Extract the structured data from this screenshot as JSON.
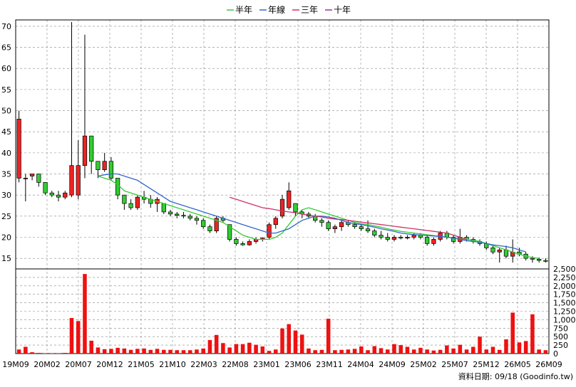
{
  "legend": [
    {
      "label": "半年",
      "color": "#33cc33"
    },
    {
      "label": "年線",
      "color": "#3366cc"
    },
    {
      "label": "三年",
      "color": "#cc3366"
    },
    {
      "label": "十年",
      "color": "#993399"
    }
  ],
  "footer": {
    "data_date": "資料日期: 09/18  (Goodinfo.tw)"
  },
  "colors": {
    "up": "#ee2222",
    "down": "#33cc33",
    "volume": "#ee1111",
    "grid": "#888888"
  },
  "chart_data": {
    "type": "candlestick",
    "price_axis": {
      "ticks": [
        15,
        20,
        25,
        30,
        35,
        40,
        45,
        50,
        55,
        60,
        65,
        70
      ],
      "range": [
        12.5,
        71.5
      ],
      "position": "left"
    },
    "volume_axis": {
      "ticks": [
        "0",
        "250",
        "500",
        "750",
        "1,000",
        "1,250",
        "1,500",
        "1,750",
        "2,000",
        "2,250",
        "2,500"
      ],
      "range": [
        0,
        2500
      ],
      "position": "right"
    },
    "x_labels": [
      "19M09",
      "20M02",
      "20M07",
      "20M12",
      "21M05",
      "21M10",
      "22M03",
      "22M08",
      "23M01",
      "23M06",
      "23M11",
      "24M04",
      "24M09",
      "25M02",
      "25M07",
      "25M12",
      "26M05",
      "26M09"
    ],
    "candles": [
      {
        "o": 34,
        "h": 50,
        "l": 33,
        "c": 48
      },
      {
        "o": 34,
        "h": 35,
        "l": 28.5,
        "c": 34
      },
      {
        "o": 34.5,
        "h": 35,
        "l": 33.5,
        "c": 35
      },
      {
        "o": 35,
        "h": 35,
        "l": 32,
        "c": 33
      },
      {
        "o": 33,
        "h": 33,
        "l": 30,
        "c": 30.5
      },
      {
        "o": 30.5,
        "h": 31,
        "l": 29.5,
        "c": 30
      },
      {
        "o": 30,
        "h": 31,
        "l": 28.5,
        "c": 29.5
      },
      {
        "o": 29.5,
        "h": 31,
        "l": 29,
        "c": 30.5
      },
      {
        "o": 30,
        "h": 71,
        "l": 29.5,
        "c": 37
      },
      {
        "o": 30,
        "h": 43,
        "l": 29,
        "c": 37
      },
      {
        "o": 37,
        "h": 68,
        "l": 34,
        "c": 44
      },
      {
        "o": 44,
        "h": 44,
        "l": 35,
        "c": 38
      },
      {
        "o": 38,
        "h": 38,
        "l": 34,
        "c": 36
      },
      {
        "o": 36,
        "h": 40,
        "l": 35.5,
        "c": 38
      },
      {
        "o": 38,
        "h": 39,
        "l": 33.5,
        "c": 34
      },
      {
        "o": 34,
        "h": 34,
        "l": 29,
        "c": 30
      },
      {
        "o": 30,
        "h": 30,
        "l": 26.5,
        "c": 28
      },
      {
        "o": 28,
        "h": 29,
        "l": 26.5,
        "c": 27
      },
      {
        "o": 27,
        "h": 30,
        "l": 26.5,
        "c": 29.5
      },
      {
        "o": 29.5,
        "h": 31,
        "l": 28,
        "c": 29
      },
      {
        "o": 29,
        "h": 30,
        "l": 27,
        "c": 28
      },
      {
        "o": 28,
        "h": 29.5,
        "l": 26,
        "c": 29
      },
      {
        "o": 28,
        "h": 28,
        "l": 25.5,
        "c": 26
      },
      {
        "o": 26,
        "h": 26.5,
        "l": 25,
        "c": 25.5
      },
      {
        "o": 25.5,
        "h": 26,
        "l": 24.5,
        "c": 25.2
      },
      {
        "o": 25.2,
        "h": 26,
        "l": 24.5,
        "c": 25
      },
      {
        "o": 25,
        "h": 25.5,
        "l": 24,
        "c": 24.5
      },
      {
        "o": 24.5,
        "h": 25,
        "l": 23,
        "c": 24
      },
      {
        "o": 24,
        "h": 24.5,
        "l": 22,
        "c": 22.5
      },
      {
        "o": 22.5,
        "h": 23,
        "l": 21,
        "c": 21.5
      },
      {
        "o": 21.5,
        "h": 25,
        "l": 21,
        "c": 24.5
      },
      {
        "o": 24.5,
        "h": 25,
        "l": 23.5,
        "c": 24
      },
      {
        "o": 23,
        "h": 23,
        "l": 19,
        "c": 19.5
      },
      {
        "o": 19.5,
        "h": 20,
        "l": 18,
        "c": 18.5
      },
      {
        "o": 18.5,
        "h": 19,
        "l": 18,
        "c": 18.2
      },
      {
        "o": 18.2,
        "h": 19.5,
        "l": 18,
        "c": 19
      },
      {
        "o": 19,
        "h": 20,
        "l": 18.5,
        "c": 19.5
      },
      {
        "o": 19.5,
        "h": 20,
        "l": 19,
        "c": 19.8
      },
      {
        "o": 20,
        "h": 23.5,
        "l": 19.5,
        "c": 23
      },
      {
        "o": 23,
        "h": 25,
        "l": 22,
        "c": 24.5
      },
      {
        "o": 25,
        "h": 30,
        "l": 24.5,
        "c": 29
      },
      {
        "o": 27,
        "h": 33,
        "l": 26.5,
        "c": 31
      },
      {
        "o": 28,
        "h": 28,
        "l": 25,
        "c": 26
      },
      {
        "o": 26,
        "h": 26.5,
        "l": 24.5,
        "c": 25.5
      },
      {
        "o": 25.5,
        "h": 26,
        "l": 24.5,
        "c": 25
      },
      {
        "o": 25,
        "h": 25.5,
        "l": 23.5,
        "c": 24
      },
      {
        "o": 24,
        "h": 24.5,
        "l": 22.5,
        "c": 23.5
      },
      {
        "o": 23.5,
        "h": 24,
        "l": 21.5,
        "c": 22
      },
      {
        "o": 22,
        "h": 23,
        "l": 21,
        "c": 22.5
      },
      {
        "o": 22.5,
        "h": 24,
        "l": 21.5,
        "c": 23.5
      },
      {
        "o": 23.5,
        "h": 24,
        "l": 22.5,
        "c": 23
      },
      {
        "o": 23,
        "h": 23.5,
        "l": 22,
        "c": 22.5
      },
      {
        "o": 22.5,
        "h": 23,
        "l": 21.5,
        "c": 22
      },
      {
        "o": 22,
        "h": 24,
        "l": 21,
        "c": 21.5
      },
      {
        "o": 21.5,
        "h": 22,
        "l": 20,
        "c": 20.5
      },
      {
        "o": 20.5,
        "h": 21.5,
        "l": 19.5,
        "c": 20
      },
      {
        "o": 20,
        "h": 21,
        "l": 19,
        "c": 19.5
      },
      {
        "o": 19.5,
        "h": 20.5,
        "l": 19,
        "c": 20
      },
      {
        "o": 20,
        "h": 20.5,
        "l": 19.5,
        "c": 19.8
      },
      {
        "o": 19.8,
        "h": 20.5,
        "l": 19.5,
        "c": 20
      },
      {
        "o": 20,
        "h": 21,
        "l": 19.5,
        "c": 20.5
      },
      {
        "o": 20.5,
        "h": 21,
        "l": 19.5,
        "c": 20
      },
      {
        "o": 20,
        "h": 20.5,
        "l": 18,
        "c": 18.5
      },
      {
        "o": 18.5,
        "h": 20,
        "l": 18,
        "c": 19.5
      },
      {
        "o": 19.5,
        "h": 21.5,
        "l": 19,
        "c": 21
      },
      {
        "o": 21,
        "h": 21.5,
        "l": 19.5,
        "c": 20
      },
      {
        "o": 20,
        "h": 20.5,
        "l": 18.5,
        "c": 19
      },
      {
        "o": 19,
        "h": 22,
        "l": 18.5,
        "c": 20
      },
      {
        "o": 20,
        "h": 20.5,
        "l": 19,
        "c": 19.5
      },
      {
        "o": 19.5,
        "h": 20,
        "l": 18.5,
        "c": 19
      },
      {
        "o": 19,
        "h": 19.5,
        "l": 18,
        "c": 18.5
      },
      {
        "o": 18.5,
        "h": 19,
        "l": 17,
        "c": 17.5
      },
      {
        "o": 17.5,
        "h": 18,
        "l": 16,
        "c": 16.5
      },
      {
        "o": 16.5,
        "h": 17.5,
        "l": 14,
        "c": 17
      },
      {
        "o": 17,
        "h": 18,
        "l": 15,
        "c": 15.5
      },
      {
        "o": 15.5,
        "h": 19.5,
        "l": 14,
        "c": 16.5
      },
      {
        "o": 16.5,
        "h": 17.5,
        "l": 15.5,
        "c": 16
      },
      {
        "o": 16,
        "h": 16.5,
        "l": 14.5,
        "c": 15
      },
      {
        "o": 15,
        "h": 15.5,
        "l": 14,
        "c": 14.8
      },
      {
        "o": 14.8,
        "h": 15.2,
        "l": 14,
        "c": 14.5
      },
      {
        "o": 14.5,
        "h": 15,
        "l": 14,
        "c": 14.3
      }
    ],
    "series": [
      {
        "name": "半年",
        "color": "#33cc33",
        "start": 12,
        "values": [
          34.5,
          34,
          33.5,
          32.5,
          31,
          30.5,
          30,
          29.5,
          29,
          28.5,
          28,
          27.5,
          27,
          26.5,
          26,
          25.5,
          25,
          24.5,
          24,
          23.5,
          22.5,
          21.5,
          20.5,
          20,
          19.5,
          19.5,
          19.5,
          20,
          21,
          23,
          25,
          26.5,
          27,
          26.5,
          26,
          25.5,
          25,
          24.5,
          24,
          23.5,
          23.2,
          23,
          22.7,
          22.4,
          22,
          21.7,
          21.4,
          21.2,
          21,
          20.8,
          20.6,
          20.4,
          20.2,
          20,
          19.8,
          19.6,
          19.5,
          19.3,
          19,
          18.5,
          18,
          17.5,
          17,
          16.5,
          16,
          15.5,
          15.2,
          15
        ]
      },
      {
        "name": "年線",
        "color": "#3366cc",
        "start": 12,
        "values": [
          34.5,
          34.8,
          35,
          35,
          34.5,
          34,
          33.5,
          32.5,
          31.5,
          30.5,
          29.5,
          28.5,
          28,
          27.5,
          27,
          26.5,
          26,
          25.5,
          25,
          24.5,
          24,
          23.5,
          23,
          22.5,
          22,
          21.5,
          21,
          21,
          21.5,
          22,
          23,
          24,
          24.5,
          25,
          25,
          24.8,
          24.5,
          24,
          23.5,
          23.2,
          23,
          22.7,
          22.4,
          22,
          21.7,
          21.4,
          21,
          20.8,
          20.6,
          20.5,
          20.4,
          20.3,
          20.2,
          20,
          19.8,
          19.5,
          19.2,
          19,
          18.8,
          18.5,
          18.2,
          18,
          17.8,
          17.5,
          17,
          16.5
        ]
      },
      {
        "name": "三年",
        "color": "#cc3366",
        "start": 32,
        "values": [
          29.5,
          29,
          28.5,
          28,
          27.5,
          27,
          26.8,
          26.5,
          26.2,
          26,
          25.8,
          25.5,
          25.2,
          25,
          24.8,
          24.5,
          24.3,
          24.2,
          24,
          23.8,
          23.6,
          23.4,
          23.2,
          23,
          22.8,
          22.6,
          22.4,
          22.2,
          22,
          21.8,
          21.6,
          21.4,
          21.2,
          21,
          20.5,
          20,
          19.5
        ]
      },
      {
        "name": "十年",
        "color": "#993399",
        "start": 0,
        "values": []
      }
    ],
    "volumes": [
      120,
      200,
      40,
      20,
      10,
      10,
      10,
      20,
      1050,
      960,
      2350,
      380,
      180,
      130,
      140,
      170,
      150,
      110,
      140,
      150,
      110,
      140,
      110,
      110,
      100,
      100,
      100,
      120,
      150,
      400,
      550,
      310,
      180,
      280,
      280,
      320,
      260,
      210,
      80,
      120,
      740,
      870,
      680,
      560,
      150,
      100,
      110,
      1030,
      100,
      110,
      120,
      140,
      210,
      100,
      220,
      160,
      120,
      280,
      250,
      200,
      120,
      170,
      120,
      90,
      110,
      240,
      150,
      260,
      120,
      200,
      500,
      120,
      200,
      110,
      420,
      1210,
      330,
      370,
      1160,
      120,
      100
    ]
  }
}
